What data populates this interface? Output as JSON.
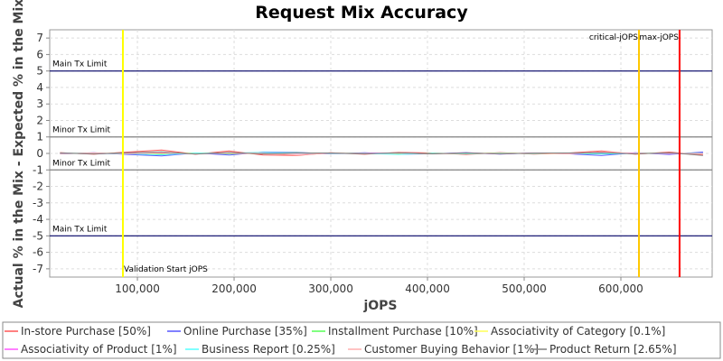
{
  "chart_data": {
    "type": "line",
    "title": "Request Mix Accuracy",
    "xlabel": "jOPS",
    "ylabel": "Actual % in the Mix - Expected % in the Mix",
    "xlim": [
      9300,
      694400
    ],
    "ylim": [
      -7.5,
      7.5
    ],
    "xticks": [
      {
        "value": 100000,
        "label": "100,000"
      },
      {
        "value": 200000,
        "label": "200,000"
      },
      {
        "value": 300000,
        "label": "300,000"
      },
      {
        "value": 400000,
        "label": "400,000"
      },
      {
        "value": 500000,
        "label": "500,000"
      },
      {
        "value": 600000,
        "label": "600,000"
      }
    ],
    "yticks": [
      -7,
      -6,
      -5,
      -4,
      -3,
      -2,
      -1,
      0,
      1,
      2,
      3,
      4,
      5,
      6,
      7
    ],
    "grid": true,
    "x": [
      20000,
      55000,
      90000,
      125000,
      160000,
      195000,
      230000,
      265000,
      300000,
      335000,
      370000,
      405000,
      440000,
      475000,
      510000,
      545000,
      580000,
      615000,
      650000,
      685000
    ],
    "series": [
      {
        "name": "In-store Purchase [50%]",
        "color": "#ff5555",
        "values": [
          0.05,
          -0.05,
          0.08,
          0.2,
          -0.05,
          0.15,
          -0.1,
          -0.12,
          0.04,
          -0.05,
          0.06,
          0.03,
          -0.06,
          0.05,
          -0.04,
          0.02,
          0.15,
          -0.05,
          0.08,
          -0.1
        ]
      },
      {
        "name": "Online Purchase [35%]",
        "color": "#5555ff",
        "values": [
          -0.03,
          0.04,
          -0.06,
          -0.15,
          0.03,
          -0.1,
          0.08,
          0.06,
          -0.02,
          0.04,
          -0.05,
          -0.02,
          0.05,
          -0.04,
          0.03,
          -0.02,
          -0.12,
          0.04,
          -0.06,
          0.08
        ]
      },
      {
        "name": "Installment Purchase [10%]",
        "color": "#55ff55",
        "values": [
          0.01,
          -0.01,
          0.02,
          -0.05,
          0.03,
          -0.02,
          0.02,
          0.04,
          -0.01,
          0.01,
          -0.03,
          0.01,
          -0.02,
          0.02,
          -0.01,
          0.01,
          -0.03,
          0.02,
          -0.01,
          0.02
        ]
      },
      {
        "name": "Associativity of Category [0.1%]",
        "color": "#ffff55",
        "values": [
          0.0,
          0.01,
          -0.01,
          0.0,
          0.01,
          0.0,
          -0.01,
          0.0,
          0.01,
          0.0,
          0.0,
          -0.01,
          0.0,
          0.01,
          0.0,
          -0.01,
          0.0,
          0.01,
          0.0,
          0.0
        ]
      },
      {
        "name": "Associativity of Product [1%]",
        "color": "#ff55ff",
        "values": [
          0.02,
          -0.02,
          0.01,
          0.03,
          -0.02,
          0.02,
          -0.01,
          0.01,
          -0.02,
          0.01,
          0.02,
          -0.01,
          0.01,
          -0.02,
          0.02,
          -0.01,
          0.01,
          0.02,
          -0.02,
          0.01
        ]
      },
      {
        "name": "Business Report [0.25%]",
        "color": "#55ffff",
        "values": [
          0.01,
          0.0,
          -0.02,
          -0.08,
          0.02,
          0.01,
          0.06,
          0.03,
          -0.01,
          0.0,
          -0.06,
          0.01,
          -0.02,
          0.01,
          -0.01,
          0.02,
          -0.02,
          0.0,
          0.01,
          -0.01
        ]
      },
      {
        "name": "Customer Buying Behavior [1%]",
        "color": "#ffafaf",
        "values": [
          -0.02,
          0.03,
          -0.02,
          0.05,
          -0.03,
          0.02,
          0.01,
          -0.1,
          0.02,
          -0.01,
          0.03,
          -0.02,
          0.02,
          -0.01,
          0.01,
          -0.02,
          0.1,
          -0.01,
          0.02,
          -0.03
        ]
      },
      {
        "name": "Product Return [2.65%]",
        "color": "#808080",
        "values": [
          0.02,
          -0.03,
          0.04,
          0.1,
          -0.04,
          0.06,
          -0.03,
          0.02,
          0.03,
          -0.02,
          0.04,
          -0.03,
          0.03,
          -0.02,
          0.02,
          0.03,
          0.05,
          -0.03,
          0.04,
          -0.12
        ]
      }
    ],
    "hlines": [
      {
        "value": 5,
        "label": "Main Tx Limit",
        "color": "#000066"
      },
      {
        "value": 1,
        "label": "Minor Tx Limit",
        "color": "#808080"
      },
      {
        "value": -1,
        "label": "Minor Tx Limit",
        "color": "#808080"
      },
      {
        "value": -5,
        "label": "Main Tx Limit",
        "color": "#000066"
      }
    ],
    "vlines": [
      {
        "value": 85000,
        "label": "Validation Start jOPS",
        "color": "#ffff00",
        "anchor": "start"
      },
      {
        "value": 618700,
        "label": "critical-jOPS",
        "color": "#ffc800",
        "anchor": "end"
      },
      {
        "value": 660700,
        "label": "max-jOPS",
        "color": "#ff0000",
        "anchor": "end"
      }
    ]
  }
}
